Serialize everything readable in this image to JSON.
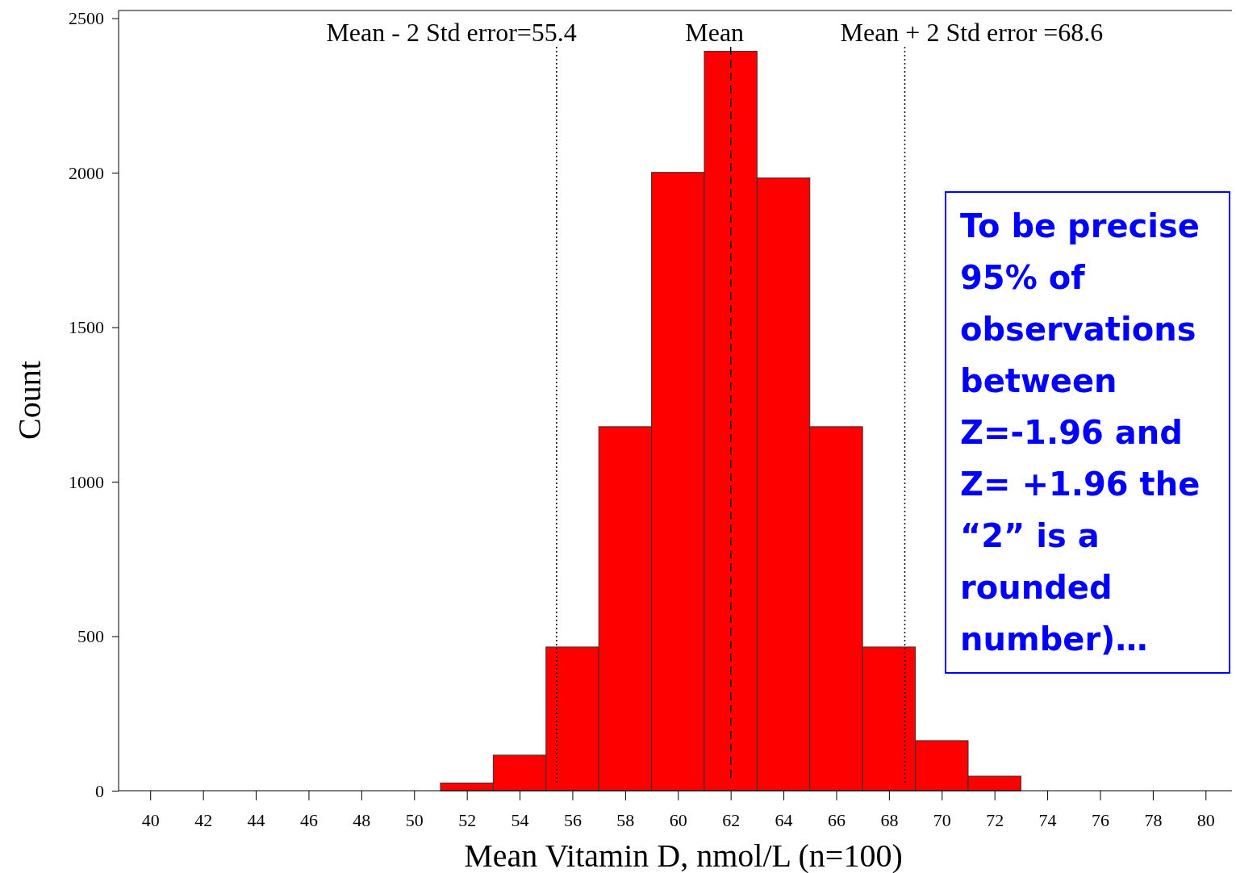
{
  "chart_data": {
    "type": "histogram",
    "xlabel": "Mean Vitamin D, nmol/L (n=100)",
    "ylabel": "Count",
    "bins": [
      51,
      53,
      55,
      57,
      59,
      61,
      63,
      65,
      67,
      69,
      71,
      73
    ],
    "values": [
      25,
      115,
      465,
      1178,
      2001,
      2393,
      1983,
      1178,
      465,
      162,
      47
    ],
    "color": "#ff0000",
    "xlim": [
      38.8,
      81
    ],
    "xticks": [
      40,
      42,
      44,
      46,
      48,
      50,
      52,
      54,
      56,
      58,
      60,
      62,
      64,
      66,
      68,
      70,
      72,
      74,
      76,
      78,
      80
    ],
    "ylim": [
      0,
      2525
    ],
    "yticks": [
      0,
      500,
      1000,
      1500,
      2000,
      2500
    ],
    "ref_lines": [
      {
        "axis": "x",
        "value": 55.4,
        "label": "Mean - 2 Std error=55.4",
        "line_style": "dotted",
        "color": "#000000"
      },
      {
        "axis": "x",
        "value": 62,
        "label": "Mean",
        "line_style": "dashed",
        "color": "#000000"
      },
      {
        "axis": "x",
        "value": 68.6,
        "label": "Mean + 2 Std error =68.6",
        "line_style": "dotted",
        "color": "#000000"
      }
    ],
    "annotations": [
      "To be precise 95% of observations between Z=-1.96 and Z= +1.96 the “2” is a rounded number)…"
    ]
  }
}
